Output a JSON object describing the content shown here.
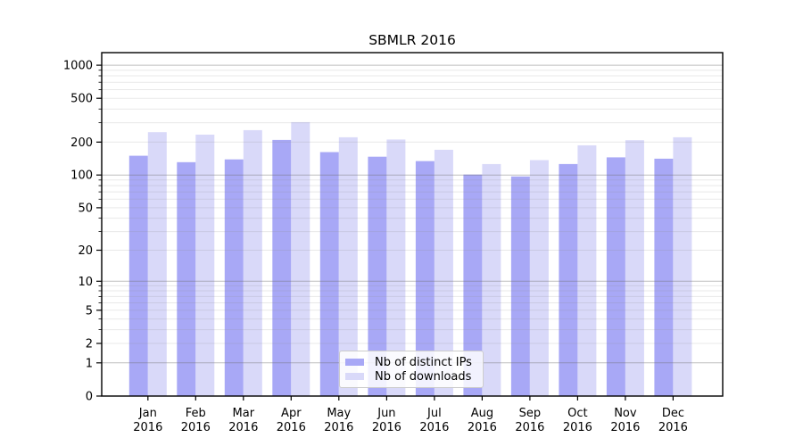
{
  "chart_data": {
    "type": "bar",
    "title": "SBMLR 2016",
    "categories": [
      "Jan 2016",
      "Feb 2016",
      "Mar 2016",
      "Apr 2016",
      "May 2016",
      "Jun 2016",
      "Jul 2016",
      "Aug 2016",
      "Sep 2016",
      "Oct 2016",
      "Nov 2016",
      "Dec 2016"
    ],
    "series": [
      {
        "name": "Nb of distinct IPs",
        "color": "#a8a8f6",
        "values": [
          150,
          131,
          139,
          209,
          162,
          147,
          134,
          101,
          97,
          126,
          145,
          141
        ]
      },
      {
        "name": "Nb of downloads",
        "color": "#d9d9f9",
        "values": [
          246,
          234,
          257,
          304,
          221,
          211,
          170,
          126,
          137,
          187,
          208,
          221
        ]
      }
    ],
    "xlabel": "",
    "ylabel": "",
    "yscale": "log10(1+y)",
    "ylim": [
      0,
      1300
    ],
    "yticks": [
      0,
      1,
      2,
      5,
      10,
      20,
      50,
      100,
      200,
      500,
      1000
    ],
    "grid": "on",
    "grid_major_values": [
      1,
      10,
      100,
      1000
    ],
    "legend_position": "lower center",
    "colors": {
      "axis": "#000000",
      "grid_major": "#6e6e6e",
      "grid_minor": "#8a8a8a",
      "text": "#000000",
      "background": "#ffffff"
    }
  }
}
